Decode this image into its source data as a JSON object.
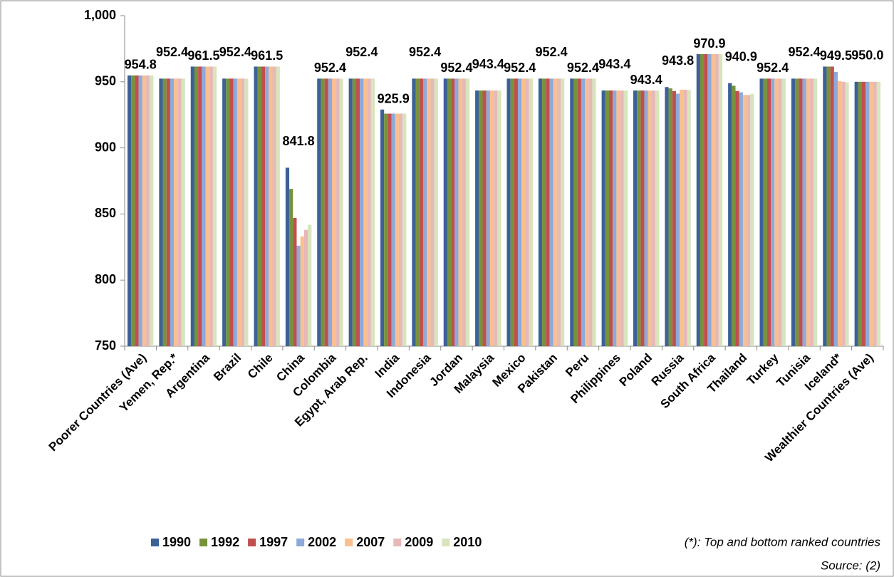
{
  "chart_data": {
    "type": "bar",
    "categories": [
      "Poorer Countries (Ave)",
      "Yemen, Rep.*",
      "Argentina",
      "Brazil",
      "Chile",
      "China",
      "Colombia",
      "Egypt, Arab Rep.",
      "India",
      "Indonesia",
      "Jordan",
      "Malaysia",
      "Mexico",
      "Pakistan",
      "Peru",
      "Philippines",
      "Poland",
      "Russia",
      "South Africa",
      "Thailand",
      "Turkey",
      "Tunisia",
      "Iceland*",
      "Wealthier Countries (Ave)"
    ],
    "series": [
      {
        "name": "1990",
        "color": "#3c6196",
        "values": [
          954.8,
          952.4,
          961.5,
          952.4,
          961.5,
          885,
          952.4,
          952.4,
          929,
          952.4,
          952.4,
          943.4,
          952.4,
          952.4,
          952.4,
          943.4,
          943.4,
          946,
          970.9,
          949,
          952.4,
          952.4,
          961.5,
          950
        ]
      },
      {
        "name": "1992",
        "color": "#76933c",
        "values": [
          954.8,
          952.4,
          961.5,
          952.4,
          961.5,
          869,
          952.4,
          952.4,
          925.9,
          952.4,
          952.4,
          943.4,
          952.4,
          952.4,
          952.4,
          943.4,
          943.4,
          945,
          970.9,
          947,
          952.4,
          952.4,
          961.5,
          950
        ]
      },
      {
        "name": "1997",
        "color": "#c0504d",
        "values": [
          954.8,
          952.4,
          961.5,
          952.4,
          961.5,
          847,
          952.4,
          952.4,
          925.9,
          952.4,
          952.4,
          943.4,
          952.4,
          952.4,
          952.4,
          943.4,
          943.4,
          943,
          970.9,
          943,
          952.4,
          952.4,
          961.5,
          950
        ]
      },
      {
        "name": "2002",
        "color": "#8ea9db",
        "values": [
          954.8,
          952.4,
          961.5,
          952.4,
          961.5,
          826,
          952.4,
          952.4,
          925.9,
          952.4,
          952.4,
          943.4,
          952.4,
          952.4,
          952.4,
          943.4,
          943.4,
          941,
          970.9,
          942,
          952.4,
          952.4,
          957.5,
          950
        ]
      },
      {
        "name": "2007",
        "color": "#fabf8f",
        "values": [
          954.8,
          952.4,
          961.5,
          952.4,
          961.5,
          833,
          952.4,
          952.4,
          925.9,
          952.4,
          952.4,
          943.4,
          952.4,
          952.4,
          952.4,
          943.4,
          943.4,
          944,
          970.9,
          940,
          952.4,
          952.4,
          950.5,
          950
        ]
      },
      {
        "name": "2009",
        "color": "#e6b9b8",
        "values": [
          954.8,
          952.4,
          961.5,
          952.4,
          961.5,
          838,
          952.4,
          952.4,
          925.9,
          952.4,
          952.4,
          943.4,
          952.4,
          952.4,
          952.4,
          943.4,
          943.4,
          944,
          970.9,
          940,
          952.4,
          952.4,
          950,
          950
        ]
      },
      {
        "name": "2010",
        "color": "#d7e4bd",
        "values": [
          954.8,
          952.4,
          961.5,
          952.4,
          961.5,
          841.8,
          952.4,
          952.4,
          925.9,
          952.4,
          952.4,
          943.4,
          952.4,
          952.4,
          952.4,
          943.4,
          943.4,
          943.8,
          970.9,
          940.9,
          952.4,
          952.4,
          949.5,
          950
        ],
        "value_labels": [
          "954.8",
          "952.4",
          "961.5",
          "952.4",
          "961.5",
          "841.8",
          "952.4",
          "952.4",
          "925.9",
          "952.4",
          "952.4",
          "943.4",
          "952.4",
          "952.4",
          "952.4",
          "943.4",
          "943.4",
          "943.8",
          "970.9",
          "940.9",
          "952.4",
          "952.4",
          "949.5",
          "950.0"
        ]
      }
    ],
    "ylim": [
      750,
      1000
    ],
    "yticks": [
      750,
      800,
      850,
      900,
      950,
      {
        "value": 1000,
        "label": "1,000"
      }
    ],
    "grid": false,
    "legend": "bottom-left",
    "notes": [
      "(*): Top and bottom ranked countries",
      "Source: (2)"
    ]
  }
}
